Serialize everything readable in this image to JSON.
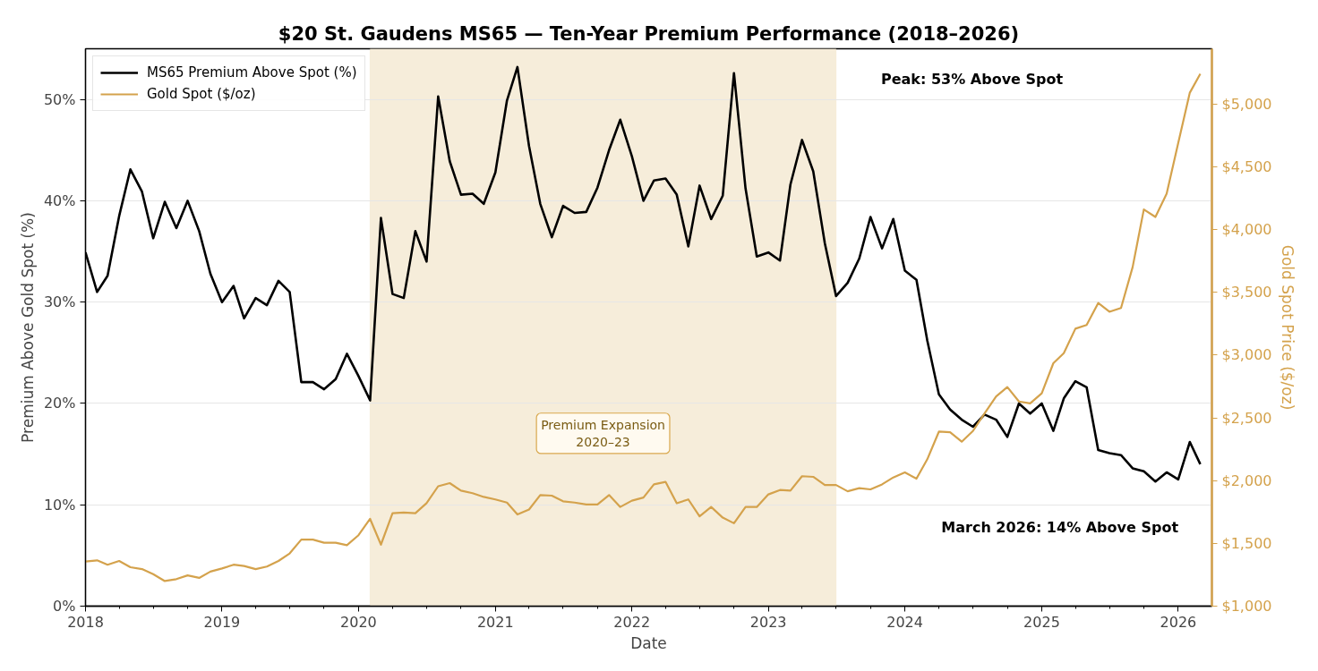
{
  "chart_data": {
    "type": "line",
    "title": "$20 St. Gaudens MS65 — Ten-Year Premium Performance (2018–2026)",
    "xlabel": "Date",
    "ylabel": "Premium Above Gold Spot (%)",
    "y2label": "Gold Spot Price ($/oz)",
    "x": [
      "2018-01",
      "2018-02",
      "2018-03",
      "2018-04",
      "2018-05",
      "2018-06",
      "2018-07",
      "2018-08",
      "2018-09",
      "2018-10",
      "2018-11",
      "2018-12",
      "2019-01",
      "2019-02",
      "2019-03",
      "2019-04",
      "2019-05",
      "2019-06",
      "2019-07",
      "2019-08",
      "2019-09",
      "2019-10",
      "2019-11",
      "2019-12",
      "2020-01",
      "2020-02",
      "2020-03",
      "2020-04",
      "2020-05",
      "2020-06",
      "2020-07",
      "2020-08",
      "2020-09",
      "2020-10",
      "2020-11",
      "2020-12",
      "2021-01",
      "2021-02",
      "2021-03",
      "2021-04",
      "2021-05",
      "2021-06",
      "2021-07",
      "2021-08",
      "2021-09",
      "2021-10",
      "2021-11",
      "2021-12",
      "2022-01",
      "2022-02",
      "2022-03",
      "2022-04",
      "2022-05",
      "2022-06",
      "2022-07",
      "2022-08",
      "2022-09",
      "2022-10",
      "2022-11",
      "2022-12",
      "2023-01",
      "2023-02",
      "2023-03",
      "2023-04",
      "2023-05",
      "2023-06",
      "2023-07",
      "2023-08",
      "2023-09",
      "2023-10",
      "2023-11",
      "2023-12",
      "2024-01",
      "2024-02",
      "2024-03",
      "2024-04",
      "2024-05",
      "2024-06",
      "2024-07",
      "2024-08",
      "2024-09",
      "2024-10",
      "2024-11",
      "2024-12",
      "2025-01",
      "2025-02",
      "2025-03",
      "2025-04",
      "2025-05",
      "2025-06",
      "2025-07",
      "2025-08",
      "2025-09",
      "2025-10",
      "2025-11",
      "2025-12",
      "2026-01",
      "2026-02",
      "2026-03"
    ],
    "series": [
      {
        "name": "MS65 Premium Above Spot (%)",
        "color": "#000000",
        "values": [
          34.9,
          31.0,
          32.6,
          38.5,
          43.1,
          40.9,
          36.3,
          39.9,
          37.3,
          40.0,
          37.0,
          32.8,
          30.0,
          31.6,
          28.4,
          30.4,
          29.7,
          32.1,
          31.0,
          22.1,
          22.1,
          21.4,
          22.4,
          24.9,
          22.7,
          20.3,
          38.3,
          30.8,
          30.4,
          37.0,
          34.0,
          50.3,
          43.9,
          40.6,
          40.7,
          39.7,
          42.8,
          49.9,
          53.2,
          45.4,
          39.7,
          36.4,
          39.5,
          38.8,
          38.9,
          41.3,
          45.0,
          48.0,
          44.4,
          40.0,
          42.0,
          42.2,
          40.6,
          35.5,
          41.5,
          38.2,
          40.5,
          52.6,
          41.2,
          34.5,
          34.9,
          34.1,
          41.6,
          46.0,
          42.9,
          35.8,
          30.6,
          31.9,
          34.3,
          38.4,
          35.3,
          38.2,
          33.1,
          32.2,
          26.2,
          20.9,
          19.4,
          18.4,
          17.7,
          18.9,
          18.4,
          16.7,
          20.0,
          19.0,
          20.0,
          17.3,
          20.5,
          22.2,
          21.6,
          15.4,
          15.1,
          14.9,
          13.6,
          13.3,
          12.3,
          13.2,
          12.5,
          16.2,
          14.0
        ]
      },
      {
        "name": "Gold Spot ($/oz)",
        "color": "#d4a24c",
        "axis": "y2",
        "values": [
          1355,
          1365,
          1330,
          1360,
          1310,
          1295,
          1255,
          1200,
          1215,
          1245,
          1225,
          1275,
          1300,
          1330,
          1320,
          1295,
          1315,
          1360,
          1420,
          1530,
          1530,
          1505,
          1505,
          1485,
          1565,
          1695,
          1490,
          1740,
          1745,
          1740,
          1820,
          1955,
          1980,
          1920,
          1900,
          1870,
          1850,
          1825,
          1730,
          1770,
          1885,
          1880,
          1835,
          1825,
          1810,
          1810,
          1885,
          1790,
          1840,
          1865,
          1970,
          1990,
          1820,
          1850,
          1715,
          1790,
          1705,
          1660,
          1790,
          1790,
          1890,
          1925,
          1920,
          2035,
          2030,
          1965,
          1965,
          1915,
          1940,
          1930,
          1970,
          2025,
          2065,
          2015,
          2170,
          2390,
          2385,
          2310,
          2395,
          2535,
          2670,
          2745,
          2630,
          2615,
          2695,
          2935,
          3015,
          3210,
          3240,
          3415,
          3345,
          3375,
          3700,
          4160,
          4100,
          4285,
          4690,
          5090,
          5240
        ]
      }
    ],
    "xlim": [
      "2018-01",
      "2026-04"
    ],
    "xticks": [
      "2018",
      {
        "value": "2018-04",
        "label": null
      },
      {
        "value": "2018-07",
        "label": null
      },
      {
        "value": "2018-10",
        "label": null
      },
      "2019",
      {
        "value": "2019-04",
        "label": null
      },
      {
        "value": "2019-07",
        "label": null
      },
      {
        "value": "2019-10",
        "label": null
      },
      "2020",
      {
        "value": "2020-04",
        "label": null
      },
      {
        "value": "2020-07",
        "label": null
      },
      {
        "value": "2020-10",
        "label": null
      },
      "2021",
      {
        "value": "2021-04",
        "label": null
      },
      {
        "value": "2021-07",
        "label": null
      },
      {
        "value": "2021-10",
        "label": null
      },
      "2022",
      {
        "value": "2022-04",
        "label": null
      },
      {
        "value": "2022-07",
        "label": null
      },
      {
        "value": "2022-10",
        "label": null
      },
      "2023",
      {
        "value": "2023-04",
        "label": null
      },
      {
        "value": "2023-07",
        "label": null
      },
      {
        "value": "2023-10",
        "label": null
      },
      "2024",
      {
        "value": "2024-04",
        "label": null
      },
      {
        "value": "2024-07",
        "label": null
      },
      {
        "value": "2024-10",
        "label": null
      },
      "2025",
      {
        "value": "2025-04",
        "label": null
      },
      {
        "value": "2025-07",
        "label": null
      },
      {
        "value": "2025-10",
        "label": null
      },
      "2026"
    ],
    "ylim": [
      0,
      55
    ],
    "yticks": [
      {
        "value": 0,
        "label": "0%"
      },
      {
        "value": 10,
        "label": "10%"
      },
      {
        "value": 20,
        "label": "20%"
      },
      {
        "value": 30,
        "label": "30%"
      },
      {
        "value": 40,
        "label": "40%"
      },
      {
        "value": 50,
        "label": "50%"
      }
    ],
    "y2lim": [
      1000,
      5440
    ],
    "y2ticks": [
      {
        "value": 1000,
        "label": "$1,000"
      },
      {
        "value": 1500,
        "label": "$1,500"
      },
      {
        "value": 2000,
        "label": "$2,000"
      },
      {
        "value": 2500,
        "label": "$2,500"
      },
      {
        "value": 3000,
        "label": "$3,000"
      },
      {
        "value": 3500,
        "label": "$3,500"
      },
      {
        "value": 4000,
        "label": "$4,000"
      },
      {
        "value": 4500,
        "label": "$4,500"
      },
      {
        "value": 5000,
        "label": "$5,000"
      }
    ],
    "grid": "y",
    "legend": "top left",
    "bands": [
      {
        "axis": "x",
        "from": "2020-02",
        "to": "2023-07",
        "label": "Premium Expansion\n2020–23",
        "color": "#f6edda"
      }
    ],
    "annotations": [
      "Peak: 53% Above Spot",
      "March 2026: 14% Above Spot"
    ]
  }
}
